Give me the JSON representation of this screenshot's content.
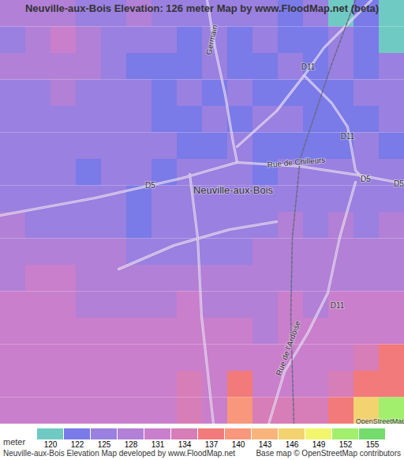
{
  "chart_data": {
    "type": "heatmap",
    "title": "Neuville-aux-Bois Elevation: 126 meter Map by www.FloodMap.net (beta)",
    "tick_labels": false,
    "cells": [
      [
        129,
        129,
        128,
        126,
        125,
        128,
        127,
        125,
        125,
        126,
        125,
        124,
        125,
        121,
        124,
        120
      ],
      [
        127,
        129,
        131,
        128,
        126,
        125,
        126,
        124,
        125,
        124,
        125,
        124,
        124,
        125,
        124,
        121
      ],
      [
        129,
        128,
        129,
        128,
        126,
        124,
        124,
        124,
        125,
        124,
        124,
        125,
        124,
        125,
        124,
        125
      ],
      [
        125,
        126,
        128,
        126,
        125,
        125,
        124,
        125,
        124,
        125,
        124,
        123,
        124,
        124,
        125,
        125
      ],
      [
        127,
        126,
        126,
        125,
        126,
        125,
        124,
        124,
        125,
        124,
        125,
        125,
        124,
        124,
        124,
        125
      ],
      [
        126,
        125,
        126,
        125,
        125,
        126,
        125,
        124,
        124,
        125,
        124,
        123,
        124,
        124,
        125,
        124
      ],
      [
        125,
        125,
        125,
        124,
        125,
        125,
        124,
        125,
        125,
        125,
        124,
        125,
        125,
        125,
        126,
        125
      ],
      [
        126,
        125,
        125,
        126,
        125,
        124,
        126,
        126,
        127,
        126,
        126,
        127,
        126,
        127,
        126,
        127
      ],
      [
        128,
        127,
        126,
        126,
        127,
        124,
        126,
        127,
        127,
        126,
        127,
        128,
        127,
        128,
        127,
        128
      ],
      [
        129,
        128,
        129,
        128,
        128,
        127,
        127,
        126,
        127,
        127,
        128,
        128,
        129,
        128,
        128,
        129
      ],
      [
        130,
        131,
        132,
        130,
        129,
        128,
        129,
        129,
        128,
        128,
        129,
        130,
        129,
        129,
        129,
        130
      ],
      [
        131,
        132,
        131,
        130,
        130,
        129,
        130,
        131,
        130,
        129,
        130,
        131,
        130,
        131,
        131,
        131
      ],
      [
        131,
        132,
        132,
        132,
        131,
        131,
        132,
        131,
        131,
        131,
        130,
        132,
        131,
        133,
        132,
        132
      ],
      [
        133,
        132,
        131,
        132,
        132,
        132,
        132,
        132,
        131,
        131,
        131,
        132,
        132,
        133,
        135,
        138
      ],
      [
        132,
        133,
        132,
        132,
        133,
        133,
        132,
        134,
        133,
        137,
        133,
        133,
        133,
        134,
        138,
        137
      ],
      [
        133,
        133,
        132,
        133,
        132,
        133,
        133,
        135,
        133,
        141,
        134,
        134,
        135,
        138,
        146,
        153
      ]
    ],
    "color_scale": {
      "label": "meter",
      "ticks": [
        120,
        122,
        125,
        128,
        131,
        134,
        137,
        140,
        143,
        146,
        149,
        152,
        155
      ],
      "colors": [
        "#6fcac4",
        "#7a7ae8",
        "#9a80e0",
        "#b280d6",
        "#c97fcc",
        "#d77db8",
        "#f27a7a",
        "#f8977b",
        "#f8b47a",
        "#f3d36f",
        "#f1f66d",
        "#a2ee6d",
        "#74db6d"
      ]
    },
    "map_labels": [
      "Germain",
      "D11",
      "D11",
      "D5",
      "Rue de Chilleurs",
      "D5",
      "D5",
      "Neuville-aux-Bois",
      "D11",
      "Rue de l'Ardoise",
      "OpenStreetMap"
    ],
    "footer": "Neuville-aux-Bois Elevation Map developed by www.FloodMap.net",
    "credit": "Base map © OpenStreetMap contributors"
  }
}
